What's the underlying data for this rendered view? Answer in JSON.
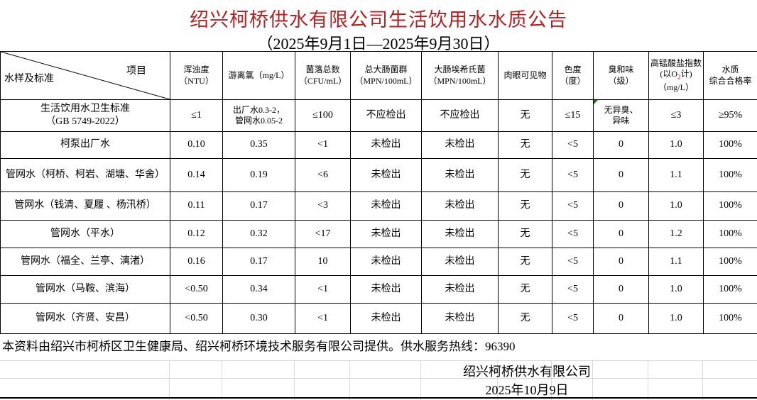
{
  "title": "绍兴柯桥供水有限公司生活饮用水水质公告",
  "subtitle": "（2025年9月1日—2025年9月30日）",
  "colors": {
    "title_red": "#b22222",
    "subscript_red": "#c00000",
    "comment_indicator_green": "#107c10",
    "grid_gray": "#d9d9d9",
    "border_black": "#000000"
  },
  "table": {
    "corner": {
      "top_right": "项目",
      "bottom_left": "水样及标准"
    },
    "columns": [
      {
        "text": "浑浊度\n（NTU）"
      },
      {
        "text": "游离氯（mg/L）"
      },
      {
        "text": "菌落总数\n（CFU/mL）"
      },
      {
        "text": "总大肠菌群\n（MPN/100mL）"
      },
      {
        "text": "大肠埃希氏菌\n（MPN/100mL）"
      },
      {
        "text": "肉眼可见物"
      },
      {
        "text": "色度\n（度）"
      },
      {
        "text": "臭和味\n（级）"
      },
      {
        "pre": "高锰酸盐指数(以O",
        "sub": "2",
        "post": "计)（mg/L）"
      },
      {
        "text": "水质\n综合合格率"
      }
    ],
    "rows": [
      {
        "name": "生活饮用水卫生标准\n（GB 5749-2022）",
        "values": [
          "≤1",
          "出厂水0.3-2，\n管网水0.05-2",
          "≤100",
          "不应检出",
          "不应检出",
          "无",
          "≤15",
          "无异臭、\n异味",
          "≤3",
          "≥95%"
        ],
        "marker_col": 7
      },
      {
        "name": "柯泵出厂水",
        "values": [
          "0.10",
          "0.35",
          "<1",
          "未检出",
          "未检出",
          "无",
          "<5",
          "0",
          "1.0",
          "100%"
        ]
      },
      {
        "name": "管网水（柯桥、柯岩、湖塘、华舍）",
        "values": [
          "0.14",
          "0.19",
          "<6",
          "未检出",
          "未检出",
          "无",
          "<5",
          "0",
          "1.1",
          "100%"
        ]
      },
      {
        "name": "管网水（钱清、夏履 、杨汛桥）",
        "values": [
          "0.11",
          "0.17",
          "<3",
          "未检出",
          "未检出",
          "无",
          "<5",
          "0",
          "1.0",
          "100%"
        ]
      },
      {
        "name": "管网水（平水）",
        "values": [
          "0.12",
          "0.32",
          "<17",
          "未检出",
          "未检出",
          "无",
          "<5",
          "0",
          "1.2",
          "100%"
        ]
      },
      {
        "name": "管网水（福全、兰亭、漓渚）",
        "values": [
          "0.16",
          "0.17",
          "10",
          "未检出",
          "未检出",
          "无",
          "<5",
          "0",
          "1.1",
          "100%"
        ]
      },
      {
        "name": "管网水（马鞍、滨海）",
        "values": [
          "<0.50",
          "0.34",
          "<1",
          "未检出",
          "未检出",
          "无",
          "<5",
          "0",
          "1.0",
          "100%"
        ]
      },
      {
        "name": "管网水（齐贤、安昌）",
        "values": [
          "<0.50",
          "0.30",
          "<1",
          "未检出",
          "未检出",
          "无",
          "<5",
          "0",
          "1.0",
          "100%"
        ]
      }
    ]
  },
  "footer": {
    "note": "本资料由绍兴市柯桥区卫生健康局、绍兴柯桥环境技术服务有限公司提供。供水服务热线：96390",
    "company": "绍兴柯桥供水有限公司",
    "date": "2025年10月9日"
  }
}
